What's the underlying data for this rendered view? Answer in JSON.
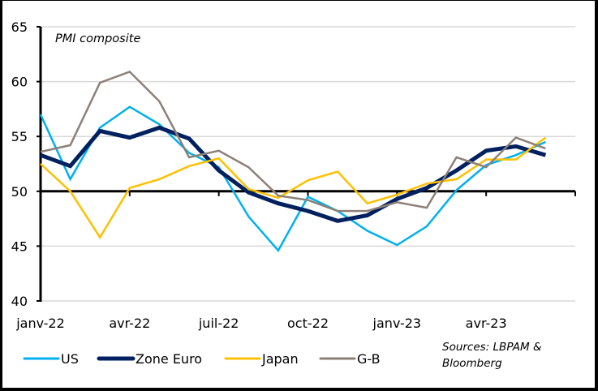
{
  "chart_data": {
    "type": "line",
    "title": "PMI composite",
    "xlabel": "",
    "ylabel": "",
    "ylim": [
      40,
      65
    ],
    "yticks": [
      40,
      45,
      50,
      55,
      60,
      65
    ],
    "y_reference_line": 50,
    "grid": true,
    "x": [
      "janv-22",
      "févr-22",
      "mars-22",
      "avr-22",
      "mai-22",
      "juin-22",
      "juil-22",
      "août-22",
      "sept-22",
      "oct-22",
      "nov-22",
      "déc-22",
      "janv-23",
      "févr-23",
      "mars-23",
      "avr-23",
      "mai-23",
      "juin-23"
    ],
    "xtick_labels": [
      {
        "index": 0,
        "label": "janv-22"
      },
      {
        "index": 3,
        "label": "avr-22"
      },
      {
        "index": 6,
        "label": "juil-22"
      },
      {
        "index": 9,
        "label": "oct-22"
      },
      {
        "index": 12,
        "label": "janv-23"
      },
      {
        "index": 15,
        "label": "avr-23"
      }
    ],
    "x_axis_months": 18,
    "series": [
      {
        "name": "US",
        "color": "#00B0F0",
        "width": "thin",
        "values": [
          57.0,
          51.1,
          55.8,
          57.7,
          56.1,
          53.5,
          52.2,
          47.7,
          44.6,
          49.5,
          48.2,
          46.4,
          45.1,
          46.8,
          50.1,
          52.4,
          53.3,
          54.5
        ]
      },
      {
        "name": "Zone Euro",
        "color": "#002060",
        "width": "thick",
        "values": [
          53.3,
          52.3,
          55.5,
          54.9,
          55.8,
          54.8,
          51.9,
          49.9,
          48.9,
          48.2,
          47.3,
          47.8,
          49.3,
          50.3,
          51.9,
          53.7,
          54.1,
          53.3
        ]
      },
      {
        "name": "Japan",
        "color": "#FFC000",
        "width": "thin",
        "values": [
          52.5,
          50.0,
          45.8,
          50.3,
          51.1,
          52.3,
          53.0,
          50.2,
          49.4,
          51.0,
          51.8,
          48.9,
          49.7,
          50.7,
          51.1,
          52.9,
          52.9,
          54.9
        ]
      },
      {
        "name": "G-B",
        "color": "#8C8078",
        "width": "thin",
        "values": [
          53.6,
          54.2,
          59.9,
          60.9,
          58.2,
          53.1,
          53.7,
          52.2,
          49.6,
          49.2,
          48.2,
          48.2,
          49.0,
          48.5,
          53.1,
          52.2,
          54.9,
          53.9
        ]
      }
    ],
    "legend": {
      "position": "bottom",
      "entries": [
        "US",
        "Zone Euro",
        "Japan",
        "G-B"
      ]
    },
    "source_note": [
      "Sources: LBPAM &",
      "Bloomberg"
    ]
  }
}
